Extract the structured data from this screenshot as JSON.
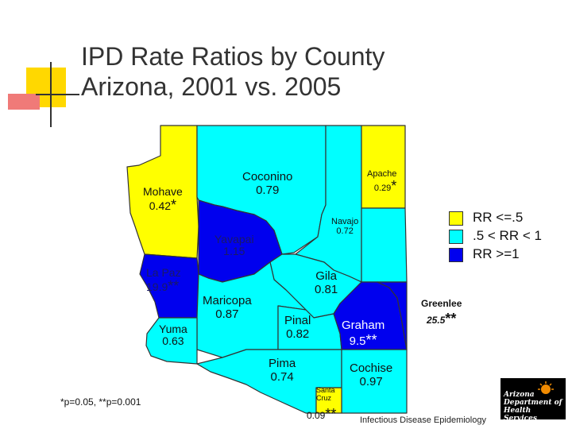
{
  "title": {
    "line1": "IPD Rate Ratios by County",
    "line2": "Arizona, 2001 vs. 2005"
  },
  "colors": {
    "low": "#ffff00",
    "mid": "#00ffff",
    "high": "#0000ee",
    "border": "#333333"
  },
  "counties": [
    {
      "id": "mohave",
      "name": "Mohave",
      "value": "0.42",
      "mark": "*",
      "category": "low"
    },
    {
      "id": "coconino",
      "name": "Coconino",
      "value": "0.79",
      "mark": "",
      "category": "mid"
    },
    {
      "id": "apache",
      "name": "Apache",
      "value": "0.29",
      "mark": "*",
      "category": "low"
    },
    {
      "id": "navajo",
      "name": "Navajo",
      "value": "0.72",
      "mark": "",
      "category": "mid"
    },
    {
      "id": "yavapai",
      "name": "Yavapai",
      "value": "1.15",
      "mark": "",
      "category": "high"
    },
    {
      "id": "lapaz",
      "name": "La Paz",
      "value": "19.9",
      "mark": "**",
      "category": "high"
    },
    {
      "id": "gila",
      "name": "Gila",
      "value": "0.81",
      "mark": "",
      "category": "mid"
    },
    {
      "id": "maricopa",
      "name": "Maricopa",
      "value": "0.87",
      "mark": "",
      "category": "mid"
    },
    {
      "id": "greenlee",
      "name": "Greenlee",
      "value": "25.5",
      "mark": "**",
      "category": "high"
    },
    {
      "id": "yuma",
      "name": "Yuma",
      "value": "0.63",
      "mark": "",
      "category": "mid"
    },
    {
      "id": "pinal",
      "name": "Pinal",
      "value": "0.82",
      "mark": "",
      "category": "mid"
    },
    {
      "id": "graham",
      "name": "Graham",
      "value": "9.5",
      "mark": "**",
      "category": "high"
    },
    {
      "id": "pima",
      "name": "Pima",
      "value": "0.74",
      "mark": "",
      "category": "mid"
    },
    {
      "id": "cochise",
      "name": "Cochise",
      "value": "0.97",
      "mark": "",
      "category": "mid"
    },
    {
      "id": "santacruz",
      "name": "Santa Cruz",
      "value": "0.09",
      "mark": "**",
      "category": "low"
    }
  ],
  "legend": [
    {
      "label": "RR <=.5",
      "category": "low"
    },
    {
      "label": ".5 < RR < 1",
      "category": "mid"
    },
    {
      "label": "RR >=1",
      "category": "high"
    }
  ],
  "footnote": "*p=0.05, **p=0.001",
  "credit": "Infectious Disease Epidemiology",
  "logo": {
    "line1": "Arizona",
    "line2": "Department of",
    "line3": "Health Services"
  }
}
